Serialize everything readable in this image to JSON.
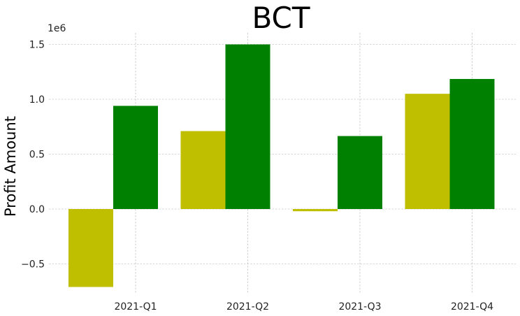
{
  "chart_data": {
    "type": "bar",
    "title": "BCT",
    "xlabel": "",
    "ylabel": "Profit Amount",
    "y_scale_label": "1e6",
    "categories": [
      "2021-Q1",
      "2021-Q2",
      "2021-Q3",
      "2021-Q4"
    ],
    "series": [
      {
        "values": [
          -710000,
          710000,
          -20000,
          1050000
        ],
        "color": "#bfbf00"
      },
      {
        "values": [
          940000,
          1500000,
          665000,
          1185000
        ],
        "color": "#008000"
      }
    ],
    "ylim": [
      -0.8,
      1.6
    ],
    "ytick_values": [
      -0.5,
      0.0,
      0.5,
      1.0,
      1.5
    ],
    "ytick_labels": [
      "−0.5",
      "0.0",
      "0.5",
      "1.0",
      "1.5"
    ],
    "grid": true,
    "legend": "none"
  }
}
